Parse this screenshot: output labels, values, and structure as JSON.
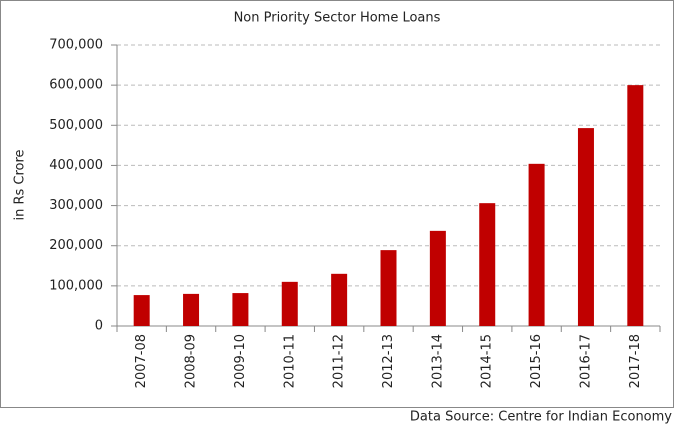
{
  "chart_data": {
    "type": "bar",
    "title": "Non Priority Sector Home Loans",
    "y_label": "in Rs Crore",
    "source": "Data Source: Centre for Indian Economy",
    "categories": [
      "2007-08",
      "2008-09",
      "2009-10",
      "2010-11",
      "2011-12",
      "2012-13",
      "2013-14",
      "2014-15",
      "2015-16",
      "2016-17",
      "2017-18"
    ],
    "values": [
      77000,
      80000,
      82000,
      110000,
      130000,
      189000,
      237000,
      306000,
      404000,
      493000,
      600000
    ],
    "color": "#c00000",
    "ylim": [
      0,
      700000
    ],
    "yticks": [
      0,
      {
        "value": 100000,
        "label": "100,000"
      },
      {
        "value": 200000,
        "label": "200,000"
      },
      {
        "value": 300000,
        "label": "300,000"
      },
      {
        "value": 400000,
        "label": "400,000"
      },
      {
        "value": 500000,
        "label": "500,000"
      },
      {
        "value": 600000,
        "label": "600,000"
      },
      {
        "value": 700000,
        "label": "700,000"
      }
    ],
    "grid": true
  }
}
